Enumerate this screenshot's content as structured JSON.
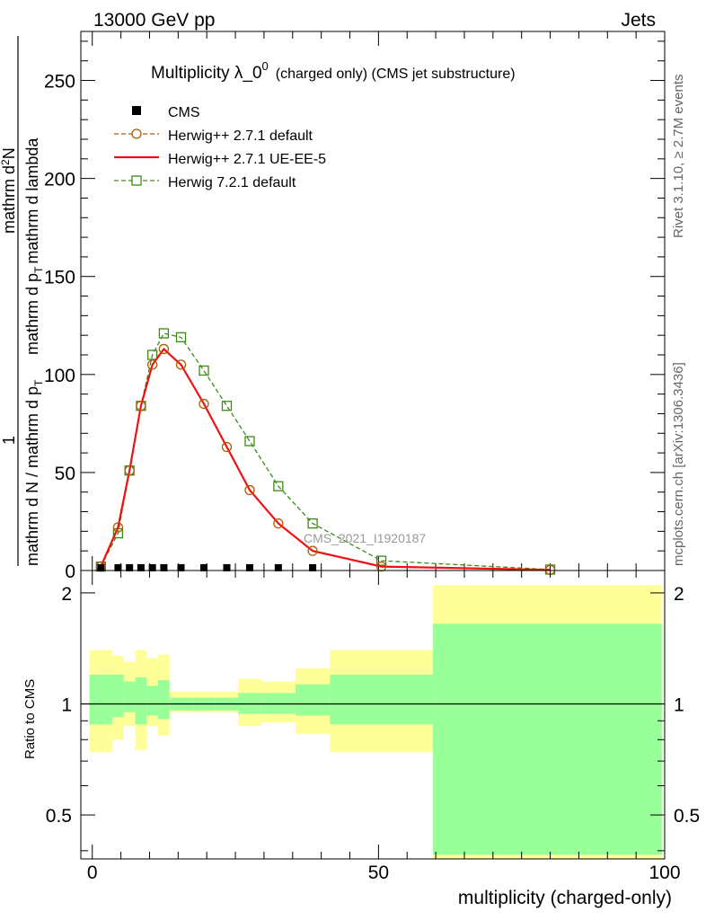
{
  "header": {
    "left": "13000 GeV pp",
    "right": "Jets"
  },
  "side_texts": {
    "rivet": "Rivet 3.1.10, ≥ 2.7M events",
    "mcplots": "mcplots.cern.ch [arXiv:1306.3436]"
  },
  "chart_data": [
    {
      "type": "line",
      "title_main": "Multiplicity λ_0",
      "title_sup": "0",
      "title_sub": "(charged only) (CMS jet substructure)",
      "watermark": "CMS_2021_I1920187",
      "ylabel_num": "1",
      "ylabel_den": "mathrm d N / mathrm d p",
      "ylabel_den_sub": "T",
      "ylabel_num2": "mathrm d",
      "ylabel_num2_sup": "2",
      "ylabel_num2_tail": "N",
      "ylabel_den2": "mathrm d p",
      "ylabel_den2_sub": "T",
      "ylabel_den2_tail": "mathrm d lambda",
      "xlim": [
        -2,
        100
      ],
      "ylim": [
        0,
        275
      ],
      "yticks": [
        0,
        50,
        100,
        150,
        200,
        250
      ],
      "ytick_labels": [
        "0",
        "50",
        "100",
        "150",
        "200",
        "250"
      ],
      "legend": [
        {
          "name": "CMS",
          "style": "square-filled",
          "color": "#000000"
        },
        {
          "name": "Herwig++ 2.7.1 default",
          "style": "circle-dashed",
          "color": "#b35900"
        },
        {
          "name": "Herwig++ 2.7.1 UE-EE-5",
          "style": "solid",
          "color": "#ee1111"
        },
        {
          "name": "Herwig 7.2.1 default",
          "style": "square-dashed",
          "color": "#3a8c13"
        }
      ],
      "series": [
        {
          "name": "CMS",
          "x": [
            1.5,
            4.5,
            6.5,
            8.5,
            10.5,
            12.5,
            15.5,
            19.5,
            23.5,
            27.5,
            32.5,
            38.5,
            50.5,
            80
          ],
          "y": [
            0.5,
            0.5,
            0.5,
            0.5,
            0.5,
            0.5,
            0.5,
            0.5,
            0.5,
            0.5,
            0.5,
            0.5,
            0.3,
            0.1
          ]
        },
        {
          "name": "Herwig++ 2.7.1 default",
          "x": [
            1.5,
            4.5,
            6.5,
            8.5,
            10.5,
            12.5,
            15.5,
            19.5,
            23.5,
            27.5,
            32.5,
            38.5,
            50.5,
            80
          ],
          "y": [
            2,
            22,
            51,
            84,
            105,
            113,
            105,
            85,
            63,
            41,
            24,
            10,
            2,
            0.3
          ]
        },
        {
          "name": "Herwig++ 2.7.1 UE-EE-5",
          "x": [
            1.5,
            4.5,
            6.5,
            8.5,
            10.5,
            12.5,
            15.5,
            19.5,
            23.5,
            27.5,
            32.5,
            38.5,
            50.5,
            80
          ],
          "y": [
            2,
            22,
            51,
            84,
            105,
            113,
            105,
            85,
            63,
            41,
            24,
            10,
            2,
            0.3
          ]
        },
        {
          "name": "Herwig 7.2.1 default",
          "x": [
            1.5,
            4.5,
            6.5,
            8.5,
            10.5,
            12.5,
            15.5,
            19.5,
            23.5,
            27.5,
            32.5,
            38.5,
            50.5,
            80
          ],
          "y": [
            2,
            19,
            51,
            84,
            110,
            121,
            119,
            102,
            84,
            66,
            43,
            24,
            5,
            0.5
          ]
        }
      ]
    },
    {
      "type": "area",
      "ylabel": "Ratio to CMS",
      "xlabel": "multiplicity (charged-only)",
      "xlim": [
        -2,
        100
      ],
      "ylim": [
        0.38,
        2.3
      ],
      "yticks": [
        0.5,
        1,
        2
      ],
      "ytick_labels": [
        "0.5",
        "1",
        "2"
      ],
      "xticks": [
        0,
        50,
        100
      ],
      "xtick_labels": [
        "0",
        "50",
        "100"
      ],
      "band_colors": {
        "outer": "#ffff99",
        "inner": "#99ff99",
        "line": "#000000"
      },
      "bins": [
        {
          "lo": -0.5,
          "hi": 3.5,
          "in_lo": 0.88,
          "in_hi": 1.2,
          "out_lo": 0.74,
          "out_hi": 1.4
        },
        {
          "lo": 3.5,
          "hi": 5.5,
          "in_lo": 0.92,
          "in_hi": 1.2,
          "out_lo": 0.8,
          "out_hi": 1.35
        },
        {
          "lo": 5.5,
          "hi": 7.5,
          "in_lo": 0.95,
          "in_hi": 1.15,
          "out_lo": 0.87,
          "out_hi": 1.3
        },
        {
          "lo": 7.5,
          "hi": 9.5,
          "in_lo": 0.88,
          "in_hi": 1.18,
          "out_lo": 0.75,
          "out_hi": 1.4
        },
        {
          "lo": 9.5,
          "hi": 11.5,
          "in_lo": 0.93,
          "in_hi": 1.12,
          "out_lo": 0.87,
          "out_hi": 1.33
        },
        {
          "lo": 11.5,
          "hi": 13.5,
          "in_lo": 0.91,
          "in_hi": 1.16,
          "out_lo": 0.82,
          "out_hi": 1.36
        },
        {
          "lo": 13.5,
          "hi": 17.5,
          "in_lo": 0.96,
          "in_hi": 1.04,
          "out_lo": 0.95,
          "out_hi": 1.08
        },
        {
          "lo": 17.5,
          "hi": 21.5,
          "in_lo": 0.96,
          "in_hi": 1.04,
          "out_lo": 0.95,
          "out_hi": 1.08
        },
        {
          "lo": 21.5,
          "hi": 25.5,
          "in_lo": 0.96,
          "in_hi": 1.04,
          "out_lo": 0.95,
          "out_hi": 1.08
        },
        {
          "lo": 25.5,
          "hi": 29.5,
          "in_lo": 0.94,
          "in_hi": 1.07,
          "out_lo": 0.87,
          "out_hi": 1.17
        },
        {
          "lo": 29.5,
          "hi": 35.5,
          "in_lo": 0.94,
          "in_hi": 1.07,
          "out_lo": 0.89,
          "out_hi": 1.15
        },
        {
          "lo": 35.5,
          "hi": 41.5,
          "in_lo": 0.93,
          "in_hi": 1.13,
          "out_lo": 0.83,
          "out_hi": 1.25
        },
        {
          "lo": 41.5,
          "hi": 59.5,
          "in_lo": 0.88,
          "in_hi": 1.2,
          "out_lo": 0.74,
          "out_hi": 1.4
        },
        {
          "lo": 59.5,
          "hi": 99.5,
          "in_lo": 0.39,
          "in_hi": 1.65,
          "out_lo": 0.38,
          "out_hi": 2.1
        }
      ]
    }
  ]
}
